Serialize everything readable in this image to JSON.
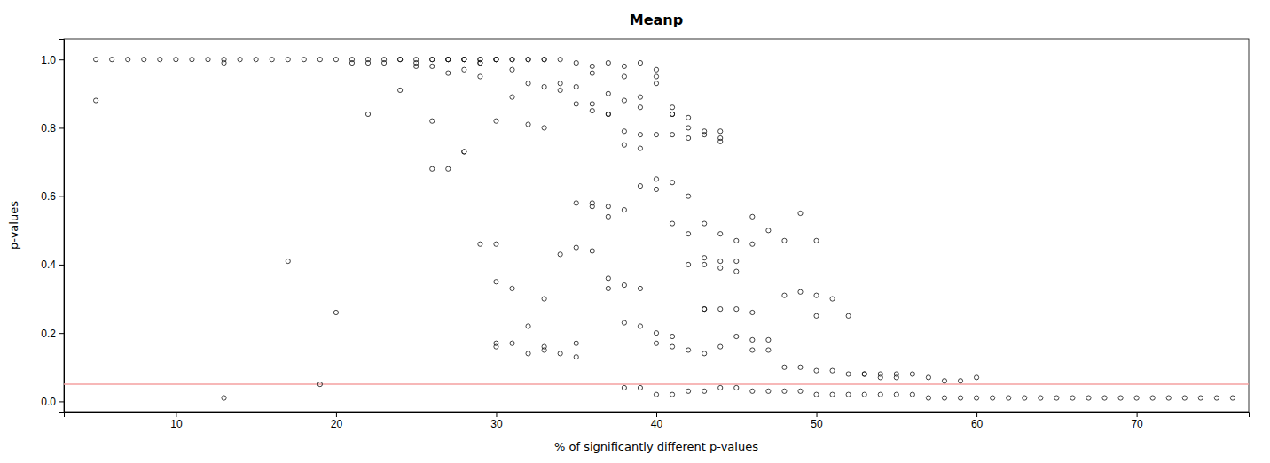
{
  "chart_data": {
    "type": "scatter",
    "title": "Meanp",
    "xlabel": "% of significantly different p-values",
    "ylabel": "p-values",
    "xlim": [
      3,
      77
    ],
    "ylim": [
      -0.03,
      1.06
    ],
    "xticks": [
      10,
      20,
      30,
      40,
      50,
      60,
      70
    ],
    "yticks": [
      {
        "value": 0.0,
        "label": "0.0"
      },
      0.2,
      0.4,
      0.6,
      0.8,
      {
        "value": 1.0,
        "label": "1.0"
      }
    ],
    "grid": false,
    "color": "#111111",
    "marker": "circle-open",
    "hline": {
      "y": 0.05,
      "color": "#f4a0a0"
    },
    "x": [
      5,
      6,
      7,
      8,
      9,
      10,
      11,
      12,
      13,
      14,
      15,
      16,
      17,
      18,
      19,
      20,
      21,
      22,
      23,
      24,
      25,
      26,
      27,
      28,
      29,
      5,
      13,
      17,
      20,
      21,
      22,
      23,
      24,
      25,
      26,
      27,
      28,
      29,
      30,
      31,
      32,
      33,
      34,
      35,
      36,
      37,
      38,
      39,
      40,
      27,
      28,
      29,
      30,
      30,
      31,
      32,
      33,
      34,
      35,
      36,
      37,
      38,
      38,
      39,
      39,
      40,
      40,
      41,
      41,
      42,
      42,
      43,
      43,
      44,
      44,
      35,
      36,
      37,
      38,
      39,
      40,
      41,
      42,
      43,
      44,
      45,
      46,
      47,
      48,
      49,
      50,
      30,
      32,
      33,
      34,
      35,
      36,
      37,
      38,
      39,
      40,
      41,
      42,
      43,
      44,
      45,
      46,
      47,
      48,
      49,
      50,
      51,
      52,
      53,
      54,
      55,
      56,
      57,
      58,
      59,
      60,
      40,
      41,
      42,
      43,
      44,
      45,
      46,
      47,
      48,
      49,
      50,
      51,
      52,
      53,
      54,
      55,
      56,
      57,
      58,
      59,
      60,
      61,
      62,
      63,
      64,
      65,
      66,
      67,
      68,
      69,
      70,
      71,
      72,
      73,
      74,
      75,
      76,
      42,
      43,
      44,
      45,
      46,
      47,
      48,
      49,
      50,
      51,
      52,
      53,
      54,
      55,
      38,
      39,
      40,
      41,
      42,
      43,
      44,
      45,
      26,
      28,
      30,
      31,
      33,
      35,
      37,
      38,
      39,
      40,
      41,
      31,
      32,
      33,
      34,
      35,
      36,
      37,
      29,
      30,
      31,
      32,
      33,
      26,
      27,
      28,
      29,
      30,
      43,
      44,
      45,
      46,
      36,
      37,
      38,
      39,
      40,
      41,
      42,
      22,
      24,
      26,
      25,
      27,
      28,
      29,
      19,
      13,
      30,
      31,
      32,
      33,
      34,
      35,
      36,
      37,
      46,
      43,
      41,
      44,
      50,
      39,
      38
    ],
    "y": [
      1.0,
      1.0,
      1.0,
      1.0,
      1.0,
      1.0,
      1.0,
      1.0,
      1.0,
      1.0,
      1.0,
      1.0,
      1.0,
      1.0,
      1.0,
      1.0,
      1.0,
      1.0,
      1.0,
      1.0,
      1.0,
      1.0,
      1.0,
      1.0,
      1.0,
      0.88,
      0.99,
      0.41,
      0.26,
      0.99,
      0.99,
      0.99,
      1.0,
      0.98,
      0.98,
      1.0,
      1.0,
      0.99,
      1.0,
      1.0,
      1.0,
      1.0,
      1.0,
      0.99,
      0.98,
      0.99,
      0.98,
      0.99,
      0.97,
      0.68,
      0.73,
      0.46,
      0.46,
      0.82,
      0.89,
      0.81,
      0.8,
      0.93,
      0.92,
      0.96,
      0.9,
      0.95,
      0.88,
      0.86,
      0.89,
      0.95,
      0.93,
      0.86,
      0.84,
      0.83,
      0.8,
      0.79,
      0.78,
      0.77,
      0.76,
      0.58,
      0.58,
      0.57,
      0.56,
      0.63,
      0.62,
      0.52,
      0.49,
      0.52,
      0.49,
      0.47,
      0.46,
      0.5,
      0.47,
      0.55,
      0.47,
      0.17,
      0.14,
      0.15,
      0.43,
      0.45,
      0.44,
      0.33,
      0.23,
      0.22,
      0.17,
      0.16,
      0.15,
      0.14,
      0.16,
      0.19,
      0.18,
      0.18,
      0.31,
      0.32,
      0.31,
      0.3,
      0.25,
      0.08,
      0.08,
      0.08,
      0.08,
      0.07,
      0.06,
      0.06,
      0.07,
      0.02,
      0.02,
      0.03,
      0.03,
      0.04,
      0.04,
      0.03,
      0.03,
      0.03,
      0.03,
      0.02,
      0.02,
      0.02,
      0.02,
      0.02,
      0.02,
      0.02,
      0.01,
      0.01,
      0.01,
      0.01,
      0.01,
      0.01,
      0.01,
      0.01,
      0.01,
      0.01,
      0.01,
      0.01,
      0.01,
      0.01,
      0.01,
      0.01,
      0.01,
      0.01,
      0.01,
      0.01,
      0.4,
      0.4,
      0.39,
      0.41,
      0.15,
      0.15,
      0.1,
      0.1,
      0.09,
      0.09,
      0.08,
      0.08,
      0.07,
      0.07,
      0.75,
      0.74,
      0.65,
      0.64,
      0.6,
      0.42,
      0.41,
      0.38,
      0.68,
      0.73,
      0.16,
      0.17,
      0.3,
      0.17,
      0.36,
      0.34,
      0.33,
      0.2,
      0.19,
      0.97,
      0.93,
      0.92,
      0.91,
      0.87,
      0.87,
      0.84,
      0.99,
      1.0,
      1.0,
      1.0,
      1.0,
      1.0,
      1.0,
      1.0,
      1.0,
      1.0,
      0.27,
      0.27,
      0.27,
      0.26,
      0.85,
      0.84,
      0.79,
      0.78,
      0.78,
      0.78,
      0.77,
      0.84,
      0.91,
      0.82,
      0.99,
      0.96,
      0.97,
      0.95,
      0.05,
      0.01,
      0.35,
      0.33,
      0.22,
      0.16,
      0.14,
      0.13,
      0.57,
      0.54,
      0.54,
      0.27,
      0.84,
      0.79,
      0.25,
      0.04,
      0.04
    ]
  }
}
